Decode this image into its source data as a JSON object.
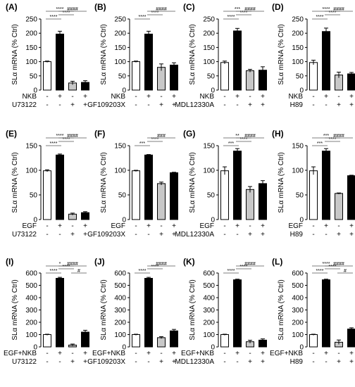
{
  "chart_data": [
    {
      "panel": "(A)",
      "type": "bar",
      "ylabel": "SLα mRNA (% Ctrl)",
      "ylim": [
        0,
        250
      ],
      "yticks": [
        0,
        50,
        100,
        150,
        200,
        250
      ],
      "values": [
        100,
        197,
        25,
        27
      ],
      "errors": [
        2,
        10,
        6,
        6
      ],
      "fills": [
        "#ffffff",
        "#000000",
        "#c8c8c8",
        "#000000"
      ],
      "stars": [
        {
          "label": "****",
          "from": 0,
          "to": 1,
          "level": 1
        },
        {
          "label": "****",
          "from": 1,
          "to": 2,
          "level": 2
        },
        {
          "label": "****",
          "from": 0,
          "to": 2,
          "level": 3
        },
        {
          "label": "####",
          "from": 1,
          "to": 3,
          "level": 4
        }
      ],
      "rows": [
        {
          "label": "NKB",
          "marks": [
            "-",
            "+",
            "-",
            "+"
          ]
        },
        {
          "label": "U73122",
          "marks": [
            "-",
            "-",
            "+",
            "+"
          ]
        }
      ]
    },
    {
      "panel": "(B)",
      "type": "bar",
      "ylabel": "SLα mRNA (% Ctrl)",
      "ylim": [
        0,
        250
      ],
      "yticks": [
        0,
        50,
        100,
        150,
        200,
        250
      ],
      "values": [
        100,
        197,
        80,
        88
      ],
      "errors": [
        2,
        10,
        12,
        8
      ],
      "fills": [
        "#ffffff",
        "#000000",
        "#c8c8c8",
        "#000000"
      ],
      "stars": [
        {
          "label": "****",
          "from": 0,
          "to": 1,
          "level": 1
        },
        {
          "label": "****",
          "from": 1,
          "to": 2,
          "level": 2
        },
        {
          "label": "####",
          "from": 1,
          "to": 3,
          "level": 3
        }
      ],
      "rows": [
        {
          "label": "NKB",
          "marks": [
            "-",
            "+",
            "-",
            "+"
          ]
        },
        {
          "label": "GF109203X",
          "marks": [
            "-",
            "-",
            "+",
            "+"
          ]
        }
      ]
    },
    {
      "panel": "(C)",
      "type": "bar",
      "ylabel": "SLα mRNA (% Ctrl)",
      "ylim": [
        0,
        250
      ],
      "yticks": [
        0,
        50,
        100,
        150,
        200,
        250
      ],
      "values": [
        97,
        208,
        68,
        70
      ],
      "errors": [
        5,
        9,
        5,
        12
      ],
      "fills": [
        "#ffffff",
        "#000000",
        "#c8c8c8",
        "#000000"
      ],
      "stars": [
        {
          "label": "****",
          "from": 0,
          "to": 1,
          "level": 1
        },
        {
          "label": "****",
          "from": 1,
          "to": 2,
          "level": 2
        },
        {
          "label": "***",
          "from": 0,
          "to": 2,
          "level": 3
        },
        {
          "label": "####",
          "from": 1,
          "to": 3,
          "level": 4
        }
      ],
      "rows": [
        {
          "label": "NKB",
          "marks": [
            "-",
            "+",
            "-",
            "+"
          ]
        },
        {
          "label": "MDL12330A",
          "marks": [
            "-",
            "-",
            "+",
            "+"
          ]
        }
      ]
    },
    {
      "panel": "(D)",
      "type": "bar",
      "ylabel": "SLα mRNA (% Ctrl)",
      "ylim": [
        0,
        250
      ],
      "yticks": [
        0,
        50,
        100,
        150,
        200,
        250
      ],
      "values": [
        97,
        206,
        53,
        57
      ],
      "errors": [
        8,
        12,
        10,
        5
      ],
      "fills": [
        "#ffffff",
        "#000000",
        "#c8c8c8",
        "#000000"
      ],
      "stars": [
        {
          "label": "****",
          "from": 0,
          "to": 1,
          "level": 1
        },
        {
          "label": "****",
          "from": 1,
          "to": 2,
          "level": 2
        },
        {
          "label": "****",
          "from": 0,
          "to": 2,
          "level": 3
        },
        {
          "label": "####",
          "from": 1,
          "to": 3,
          "level": 4
        }
      ],
      "rows": [
        {
          "label": "NKB",
          "marks": [
            "-",
            "+",
            "-",
            "+"
          ]
        },
        {
          "label": "H89",
          "marks": [
            "-",
            "-",
            "+",
            "+"
          ]
        }
      ]
    },
    {
      "panel": "(E)",
      "type": "bar",
      "ylabel": "SLα mRNA (% Ctrl)",
      "ylim": [
        0,
        150
      ],
      "yticks": [
        0,
        50,
        100,
        150
      ],
      "values": [
        99,
        131,
        11,
        14
      ],
      "errors": [
        2,
        2,
        2,
        2
      ],
      "fills": [
        "#ffffff",
        "#000000",
        "#c8c8c8",
        "#000000"
      ],
      "stars": [
        {
          "label": "****",
          "from": 0,
          "to": 1,
          "level": 1
        },
        {
          "label": "****",
          "from": 1,
          "to": 2,
          "level": 2
        },
        {
          "label": "****",
          "from": 0,
          "to": 2,
          "level": 3
        },
        {
          "label": "####",
          "from": 1,
          "to": 3,
          "level": 4
        }
      ],
      "rows": [
        {
          "label": "EGF",
          "marks": [
            "-",
            "+",
            "-",
            "+"
          ]
        },
        {
          "label": "U73122",
          "marks": [
            "-",
            "-",
            "+",
            "+"
          ]
        }
      ]
    },
    {
      "panel": "(F)",
      "type": "bar",
      "ylabel": "SLα mRNA (% Ctrl)",
      "ylim": [
        0,
        150
      ],
      "yticks": [
        0,
        50,
        100,
        150
      ],
      "values": [
        99,
        131,
        73,
        95
      ],
      "errors": [
        1,
        1,
        3,
        1
      ],
      "fills": [
        "#ffffff",
        "#000000",
        "#c8c8c8",
        "#000000"
      ],
      "stars": [
        {
          "label": "***",
          "from": 0,
          "to": 1,
          "level": 1
        },
        {
          "label": "****",
          "from": 1,
          "to": 2,
          "level": 2
        },
        {
          "label": "###",
          "from": 1,
          "to": 3,
          "level": 3
        }
      ],
      "rows": [
        {
          "label": "EGF",
          "marks": [
            "-",
            "+",
            "-",
            "+"
          ]
        },
        {
          "label": "GF109203X",
          "marks": [
            "-",
            "-",
            "+",
            "+"
          ]
        }
      ]
    },
    {
      "panel": "(G)",
      "type": "bar",
      "ylabel": "SLα mRNA (% Ctrl)",
      "ylim": [
        0,
        150
      ],
      "yticks": [
        0,
        50,
        100,
        150
      ],
      "values": [
        99,
        139,
        61,
        73
      ],
      "errors": [
        8,
        5,
        6,
        6
      ],
      "fills": [
        "#ffffff",
        "#000000",
        "#c8c8c8",
        "#000000"
      ],
      "stars": [
        {
          "label": "***",
          "from": 0,
          "to": 1,
          "level": 1
        },
        {
          "label": "****",
          "from": 1,
          "to": 2,
          "level": 2
        },
        {
          "label": "**",
          "from": 0,
          "to": 2,
          "level": 3
        },
        {
          "label": "####",
          "from": 1,
          "to": 3,
          "level": 4
        }
      ],
      "rows": [
        {
          "label": "EGF",
          "marks": [
            "-",
            "+",
            "-",
            "+"
          ]
        },
        {
          "label": "MDL12330A",
          "marks": [
            "-",
            "-",
            "+",
            "+"
          ]
        }
      ]
    },
    {
      "panel": "(H)",
      "type": "bar",
      "ylabel": "SLα mRNA (% Ctrl)",
      "ylim": [
        0,
        150
      ],
      "yticks": [
        0,
        50,
        100,
        150
      ],
      "values": [
        99,
        139,
        53,
        89
      ],
      "errors": [
        8,
        5,
        1,
        1
      ],
      "fills": [
        "#ffffff",
        "#000000",
        "#c8c8c8",
        "#000000"
      ],
      "stars": [
        {
          "label": "***",
          "from": 0,
          "to": 1,
          "level": 1
        },
        {
          "label": "****",
          "from": 1,
          "to": 2,
          "level": 2
        },
        {
          "label": "***",
          "from": 0,
          "to": 2,
          "level": 3
        },
        {
          "label": "####",
          "from": 1,
          "to": 3,
          "level": 4
        }
      ],
      "rows": [
        {
          "label": "EGF",
          "marks": [
            "-",
            "+",
            "-",
            "+"
          ]
        },
        {
          "label": "H89",
          "marks": [
            "-",
            "-",
            "+",
            "+"
          ]
        }
      ]
    },
    {
      "panel": "(I)",
      "type": "bar",
      "ylabel": "SLα mRNA (% Ctrl)",
      "ylim": [
        0,
        600
      ],
      "yticks": [
        0,
        100,
        200,
        300,
        400,
        500,
        600
      ],
      "values": [
        100,
        557,
        15,
        120
      ],
      "errors": [
        3,
        8,
        8,
        15
      ],
      "fills": [
        "#ffffff",
        "#000000",
        "#c8c8c8",
        "#000000"
      ],
      "stars": [
        {
          "label": "****",
          "from": 0,
          "to": 1,
          "level": 1
        },
        {
          "label": "#",
          "from": 2,
          "to": 3,
          "level": 1
        },
        {
          "label": "****",
          "from": 1,
          "to": 2,
          "level": 2
        },
        {
          "label": "*",
          "from": 0,
          "to": 2,
          "level": 3
        },
        {
          "label": "####",
          "from": 1,
          "to": 3,
          "level": 4
        }
      ],
      "rows": [
        {
          "label": "EGF+NKB",
          "marks": [
            "-",
            "+",
            "-",
            "+"
          ]
        },
        {
          "label": "U73122",
          "marks": [
            "-",
            "-",
            "+",
            "+"
          ]
        }
      ]
    },
    {
      "panel": "(J)",
      "type": "bar",
      "ylabel": "SLα mRNA (% Ctrl)",
      "ylim": [
        0,
        600
      ],
      "yticks": [
        0,
        100,
        200,
        300,
        400,
        500,
        600
      ],
      "values": [
        100,
        557,
        75,
        130
      ],
      "errors": [
        3,
        8,
        8,
        12
      ],
      "fills": [
        "#ffffff",
        "#000000",
        "#c8c8c8",
        "#000000"
      ],
      "stars": [
        {
          "label": "****",
          "from": 0,
          "to": 1,
          "level": 1
        },
        {
          "label": "****",
          "from": 1,
          "to": 2,
          "level": 2
        },
        {
          "label": "####",
          "from": 1,
          "to": 3,
          "level": 3
        }
      ],
      "rows": [
        {
          "label": "EGF+NKB",
          "marks": [
            "-",
            "+",
            "-",
            "+"
          ]
        },
        {
          "label": "GF109203X",
          "marks": [
            "-",
            "-",
            "+",
            "+"
          ]
        }
      ]
    },
    {
      "panel": "(K)",
      "type": "bar",
      "ylabel": "SLα mRNA (% Ctrl)",
      "ylim": [
        0,
        600
      ],
      "yticks": [
        0,
        100,
        200,
        300,
        400,
        500,
        600
      ],
      "values": [
        100,
        545,
        42,
        55
      ],
      "errors": [
        3,
        5,
        12,
        10
      ],
      "fills": [
        "#ffffff",
        "#000000",
        "#c8c8c8",
        "#000000"
      ],
      "stars": [
        {
          "label": "****",
          "from": 0,
          "to": 1,
          "level": 1
        },
        {
          "label": "****",
          "from": 1,
          "to": 2,
          "level": 2
        },
        {
          "label": "####",
          "from": 1,
          "to": 3,
          "level": 3
        }
      ],
      "rows": [
        {
          "label": "EGF+NKB",
          "marks": [
            "-",
            "+",
            "-",
            "+"
          ]
        },
        {
          "label": "MDL12330A",
          "marks": [
            "-",
            "-",
            "+",
            "+"
          ]
        }
      ]
    },
    {
      "panel": "(L)",
      "type": "bar",
      "ylabel": "SLα mRNA (% Ctrl)",
      "ylim": [
        0,
        600
      ],
      "yticks": [
        0,
        100,
        200,
        300,
        400,
        500,
        600
      ],
      "values": [
        100,
        545,
        38,
        145
      ],
      "errors": [
        3,
        5,
        18,
        10
      ],
      "fills": [
        "#ffffff",
        "#000000",
        "#c8c8c8",
        "#000000"
      ],
      "stars": [
        {
          "label": "****",
          "from": 0,
          "to": 1,
          "level": 1
        },
        {
          "label": "#",
          "from": 2,
          "to": 3,
          "level": 1
        },
        {
          "label": "****",
          "from": 1,
          "to": 2,
          "level": 2
        },
        {
          "label": "****",
          "from": 0,
          "to": 2,
          "level": 3
        },
        {
          "label": "####",
          "from": 1,
          "to": 3,
          "level": 4
        }
      ],
      "rows": [
        {
          "label": "EGF+NKB",
          "marks": [
            "-",
            "+",
            "-",
            "+"
          ]
        },
        {
          "label": "H89",
          "marks": [
            "-",
            "-",
            "+",
            "+"
          ]
        }
      ]
    }
  ]
}
